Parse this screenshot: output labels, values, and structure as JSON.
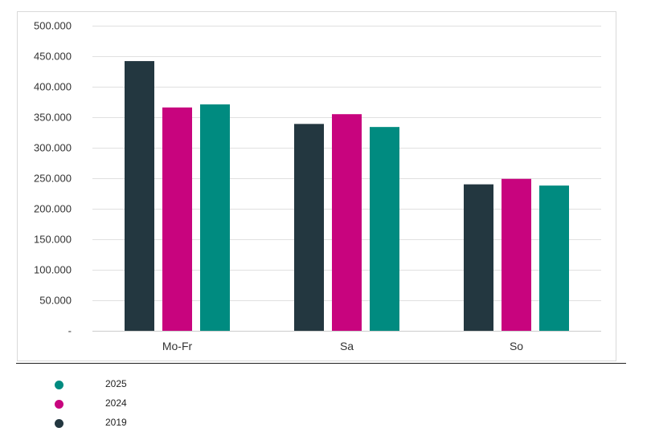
{
  "chart_data": {
    "type": "bar",
    "categories": [
      "Mo-Fr",
      "Sa",
      "So"
    ],
    "series": [
      {
        "name": "2019",
        "color": "#233740",
        "values": [
          442000,
          339000,
          240000
        ]
      },
      {
        "name": "2024",
        "color": "#c8047e",
        "values": [
          366000,
          355000,
          249000
        ]
      },
      {
        "name": "2025",
        "color": "#008b80",
        "values": [
          371000,
          334000,
          238000
        ]
      }
    ],
    "ylim": [
      0,
      500000
    ],
    "yticks": [
      {
        "value": 0,
        "label": "-"
      },
      {
        "value": 50000,
        "label": "50.000"
      },
      {
        "value": 100000,
        "label": "100.000"
      },
      {
        "value": 150000,
        "label": "150.000"
      },
      {
        "value": 200000,
        "label": "200.000"
      },
      {
        "value": 250000,
        "label": "250.000"
      },
      {
        "value": 300000,
        "label": "300.000"
      },
      {
        "value": 350000,
        "label": "350.000"
      },
      {
        "value": 400000,
        "label": "400.000"
      },
      {
        "value": 450000,
        "label": "450.000"
      },
      {
        "value": 500000,
        "label": "500.000"
      }
    ],
    "grid": true,
    "legend_position": "bottom-left",
    "legend_order": [
      "2025",
      "2024",
      "2019"
    ]
  }
}
